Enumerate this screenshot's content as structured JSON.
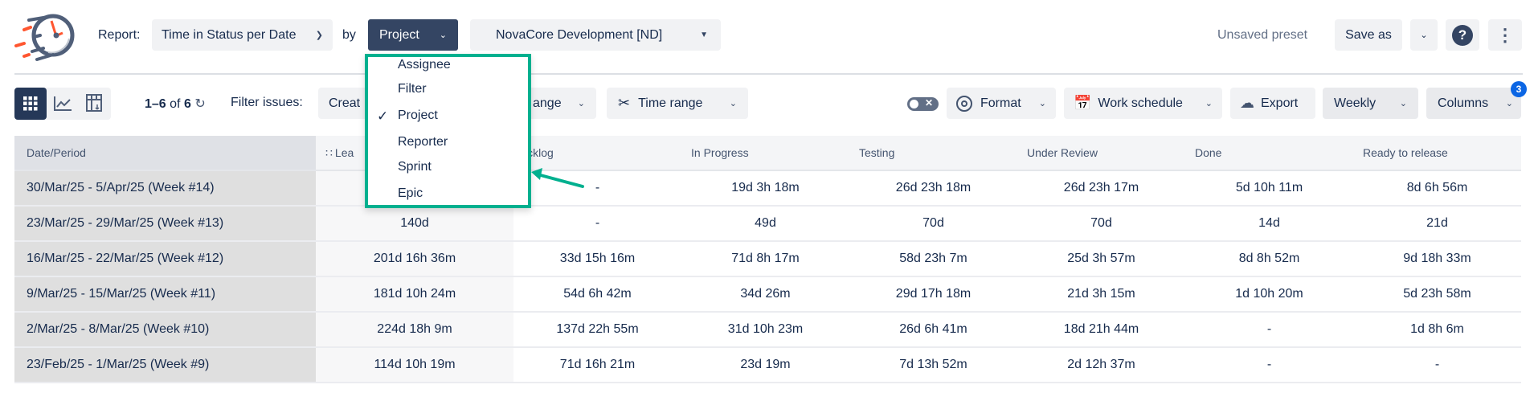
{
  "header": {
    "logo": "stopwatch-logo",
    "report_label": "Report:",
    "report_value": "Time in Status per Date",
    "by_label": "by",
    "group_by_value": "Project",
    "project_value": "NovaCore Development [ND]",
    "preset_status": "Unsaved preset",
    "save_as": "Save as"
  },
  "toolbar": {
    "count": "1–6",
    "of": "of",
    "total": "6",
    "filter_label": "Filter issues:",
    "created_btn": "Creat",
    "range_btn": "ange",
    "time_range": "Time range",
    "format": "Format",
    "work_schedule": "Work schedule",
    "export": "Export",
    "period": "Weekly",
    "columns": "Columns",
    "columns_badge": "3"
  },
  "menu": {
    "items": [
      {
        "label": "Assignee",
        "checked": false
      },
      {
        "label": "Filter",
        "checked": false
      },
      {
        "label": "Project",
        "checked": true
      },
      {
        "label": "Reporter",
        "checked": false
      },
      {
        "label": "Sprint",
        "checked": false
      },
      {
        "label": "Epic",
        "checked": false
      }
    ],
    "highlight_color": "#00b08f"
  },
  "table": {
    "headers": [
      "Date/Period",
      "Lea",
      "Backlog",
      "In Progress",
      "Testing",
      "Under Review",
      "Done",
      "Ready to release"
    ],
    "rows": [
      [
        "30/Mar/25 - 5/Apr/25 (Week #14)",
        "",
        "-",
        "19d 3h 18m",
        "26d 23h 18m",
        "26d 23h 17m",
        "5d 10h 11m",
        "8d 6h 56m"
      ],
      [
        "23/Mar/25 - 29/Mar/25 (Week #13)",
        "140d",
        "-",
        "49d",
        "70d",
        "70d",
        "14d",
        "21d"
      ],
      [
        "16/Mar/25 - 22/Mar/25 (Week #12)",
        "201d 16h 36m",
        "33d 15h 16m",
        "71d 8h 17m",
        "58d 23h 7m",
        "25d 3h 57m",
        "8d 8h 52m",
        "9d 18h 33m"
      ],
      [
        "9/Mar/25 - 15/Mar/25 (Week #11)",
        "181d 10h 24m",
        "54d 6h 42m",
        "34d 26m",
        "29d 17h 18m",
        "21d 3h 15m",
        "1d 10h 20m",
        "5d 23h 58m"
      ],
      [
        "2/Mar/25 - 8/Mar/25 (Week #10)",
        "224d 18h 9m",
        "137d 22h 55m",
        "31d 10h 23m",
        "26d 6h 41m",
        "18d 21h 44m",
        "-",
        "1d 8h 6m"
      ],
      [
        "23/Feb/25 - 1/Mar/25 (Week #9)",
        "114d 10h 19m",
        "71d 16h 21m",
        "23d 19m",
        "7d 13h 52m",
        "2d 12h 37m",
        "-",
        "-"
      ]
    ]
  }
}
